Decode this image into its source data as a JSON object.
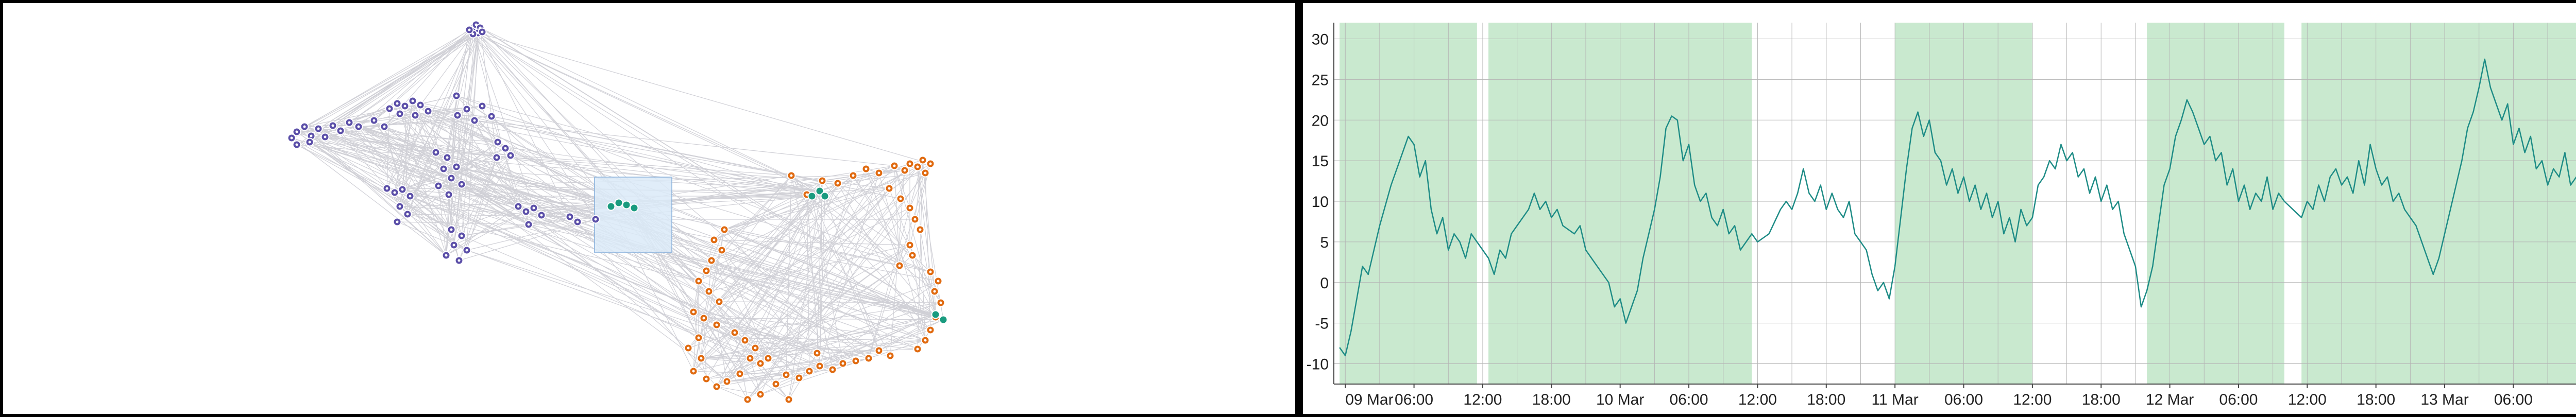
{
  "colors": {
    "cluster_a": "#5b4fa8",
    "cluster_b": "#e06a10",
    "cluster_c": "#1a9b7f",
    "edge": "#c8c8d0",
    "selection_fill": "#dbeaf8",
    "selection_stroke": "#8fb6df",
    "series_line": "#1e8c86",
    "band_fill": "#c9e9cf",
    "grid": "#b5b5b5"
  },
  "chart_data": [
    {
      "type": "network",
      "clusters": [
        {
          "color_key": "cluster_a",
          "node_count": 58
        },
        {
          "color_key": "cluster_b",
          "node_count": 70
        },
        {
          "color_key": "cluster_c",
          "node_count": 9
        }
      ],
      "selection_box": "present"
    },
    {
      "type": "line",
      "x_tick_labels": [
        "09 Mar",
        "06:00",
        "12:00",
        "18:00",
        "10 Mar",
        "06:00",
        "12:00",
        "18:00",
        "11 Mar",
        "06:00",
        "12:00",
        "18:00",
        "12 Mar",
        "06:00",
        "12:00",
        "18:00",
        "13 Mar",
        "06:00"
      ],
      "x_range_hours": [
        -1,
        109
      ],
      "ylim": [
        -12.5,
        32
      ],
      "y_ticks": [
        -10,
        -5,
        0,
        5,
        10,
        15,
        20,
        25,
        30
      ],
      "grid": true,
      "shaded_bands_hours": [
        [
          -0.5,
          11.5
        ],
        [
          12.5,
          35.5
        ],
        [
          48,
          60
        ],
        [
          70,
          82
        ],
        [
          83.5,
          109
        ]
      ],
      "series": [
        {
          "points": [
            [
              -0.5,
              -8
            ],
            [
              0,
              -9
            ],
            [
              0.5,
              -6
            ],
            [
              1,
              -2
            ],
            [
              1.5,
              2
            ],
            [
              2,
              1
            ],
            [
              3,
              7
            ],
            [
              4,
              12
            ],
            [
              5,
              16
            ],
            [
              5.5,
              18
            ],
            [
              6,
              17
            ],
            [
              6.5,
              13
            ],
            [
              7,
              15
            ],
            [
              7.5,
              9
            ],
            [
              8,
              6
            ],
            [
              8.5,
              8
            ],
            [
              9,
              4
            ],
            [
              9.5,
              6
            ],
            [
              10,
              5
            ],
            [
              10.5,
              3
            ],
            [
              11,
              6
            ],
            [
              11.5,
              5
            ],
            [
              12.5,
              3
            ],
            [
              13,
              1
            ],
            [
              13.5,
              4
            ],
            [
              14,
              3
            ],
            [
              14.5,
              6
            ],
            [
              15,
              7
            ],
            [
              16,
              9
            ],
            [
              16.5,
              11
            ],
            [
              17,
              9
            ],
            [
              17.5,
              10
            ],
            [
              18,
              8
            ],
            [
              18.5,
              9
            ],
            [
              19,
              7
            ],
            [
              20,
              6
            ],
            [
              20.5,
              7
            ],
            [
              21,
              4
            ],
            [
              22,
              2
            ],
            [
              23,
              0
            ],
            [
              23.5,
              -3
            ],
            [
              24,
              -2
            ],
            [
              24.5,
              -5
            ],
            [
              25,
              -3
            ],
            [
              25.5,
              -1
            ],
            [
              26,
              3
            ],
            [
              26.5,
              6
            ],
            [
              27,
              9
            ],
            [
              27.5,
              13
            ],
            [
              28,
              19
            ],
            [
              28.5,
              20.5
            ],
            [
              29,
              20
            ],
            [
              29.5,
              15
            ],
            [
              30,
              17
            ],
            [
              30.5,
              12
            ],
            [
              31,
              10
            ],
            [
              31.5,
              11
            ],
            [
              32,
              8
            ],
            [
              32.5,
              7
            ],
            [
              33,
              9
            ],
            [
              33.5,
              6
            ],
            [
              34,
              7
            ],
            [
              34.5,
              4
            ],
            [
              35,
              5
            ],
            [
              35.5,
              6
            ],
            [
              36,
              5
            ],
            [
              37,
              6
            ],
            [
              38,
              9
            ],
            [
              38.5,
              10
            ],
            [
              39,
              9
            ],
            [
              39.5,
              11
            ],
            [
              40,
              14
            ],
            [
              40.5,
              11
            ],
            [
              41,
              10
            ],
            [
              41.5,
              12
            ],
            [
              42,
              9
            ],
            [
              42.5,
              11
            ],
            [
              43,
              9
            ],
            [
              43.5,
              8
            ],
            [
              44,
              10
            ],
            [
              44.5,
              6
            ],
            [
              45,
              5
            ],
            [
              45.5,
              4
            ],
            [
              46,
              1
            ],
            [
              46.5,
              -1
            ],
            [
              47,
              0
            ],
            [
              47.5,
              -2
            ],
            [
              48,
              2
            ],
            [
              48.5,
              8
            ],
            [
              49,
              14
            ],
            [
              49.5,
              19
            ],
            [
              50,
              21
            ],
            [
              50.5,
              18
            ],
            [
              51,
              20
            ],
            [
              51.5,
              16
            ],
            [
              52,
              15
            ],
            [
              52.5,
              12
            ],
            [
              53,
              14
            ],
            [
              53.5,
              11
            ],
            [
              54,
              13
            ],
            [
              54.5,
              10
            ],
            [
              55,
              12
            ],
            [
              55.5,
              9
            ],
            [
              56,
              11
            ],
            [
              56.5,
              8
            ],
            [
              57,
              10
            ],
            [
              57.5,
              6
            ],
            [
              58,
              8
            ],
            [
              58.5,
              5
            ],
            [
              59,
              9
            ],
            [
              59.5,
              7
            ],
            [
              60,
              8
            ],
            [
              60.5,
              12
            ],
            [
              61,
              13
            ],
            [
              61.5,
              15
            ],
            [
              62,
              14
            ],
            [
              62.5,
              17
            ],
            [
              63,
              15
            ],
            [
              63.5,
              16
            ],
            [
              64,
              13
            ],
            [
              64.5,
              14
            ],
            [
              65,
              11
            ],
            [
              65.5,
              13
            ],
            [
              66,
              10
            ],
            [
              66.5,
              12
            ],
            [
              67,
              9
            ],
            [
              67.5,
              10
            ],
            [
              68,
              6
            ],
            [
              68.5,
              4
            ],
            [
              69,
              2
            ],
            [
              69.5,
              -3
            ],
            [
              70,
              -1
            ],
            [
              70.5,
              2
            ],
            [
              71,
              7
            ],
            [
              71.5,
              12
            ],
            [
              72,
              14
            ],
            [
              72.5,
              18
            ],
            [
              73,
              20
            ],
            [
              73.5,
              22.5
            ],
            [
              74,
              21
            ],
            [
              74.5,
              19
            ],
            [
              75,
              17
            ],
            [
              75.5,
              18
            ],
            [
              76,
              15
            ],
            [
              76.5,
              16
            ],
            [
              77,
              12
            ],
            [
              77.5,
              14
            ],
            [
              78,
              10
            ],
            [
              78.5,
              12
            ],
            [
              79,
              9
            ],
            [
              79.5,
              11
            ],
            [
              80,
              10
            ],
            [
              80.5,
              13
            ],
            [
              81,
              9
            ],
            [
              81.5,
              11
            ],
            [
              82,
              10
            ],
            [
              83.5,
              8
            ],
            [
              84,
              10
            ],
            [
              84.5,
              9
            ],
            [
              85,
              12
            ],
            [
              85.5,
              10
            ],
            [
              86,
              13
            ],
            [
              86.5,
              14
            ],
            [
              87,
              12
            ],
            [
              87.5,
              13
            ],
            [
              88,
              11
            ],
            [
              88.5,
              15
            ],
            [
              89,
              12
            ],
            [
              89.5,
              17
            ],
            [
              90,
              14
            ],
            [
              90.5,
              12
            ],
            [
              91,
              13
            ],
            [
              91.5,
              10
            ],
            [
              92,
              11
            ],
            [
              92.5,
              9
            ],
            [
              93,
              8
            ],
            [
              93.5,
              7
            ],
            [
              94,
              5
            ],
            [
              94.5,
              3
            ],
            [
              95,
              1
            ],
            [
              95.5,
              3
            ],
            [
              96,
              6
            ],
            [
              96.5,
              9
            ],
            [
              97,
              12
            ],
            [
              97.5,
              15
            ],
            [
              98,
              19
            ],
            [
              98.5,
              21
            ],
            [
              99,
              24
            ],
            [
              99.5,
              27.5
            ],
            [
              100,
              24
            ],
            [
              100.5,
              22
            ],
            [
              101,
              20
            ],
            [
              101.5,
              22
            ],
            [
              102,
              17
            ],
            [
              102.5,
              19
            ],
            [
              103,
              16
            ],
            [
              103.5,
              18
            ],
            [
              104,
              14
            ],
            [
              104.5,
              15
            ],
            [
              105,
              12
            ],
            [
              105.5,
              14
            ],
            [
              106,
              13
            ],
            [
              106.5,
              16
            ],
            [
              107,
              12
            ],
            [
              107.5,
              13
            ],
            [
              108,
              10
            ],
            [
              108.5,
              11
            ]
          ]
        }
      ]
    }
  ]
}
